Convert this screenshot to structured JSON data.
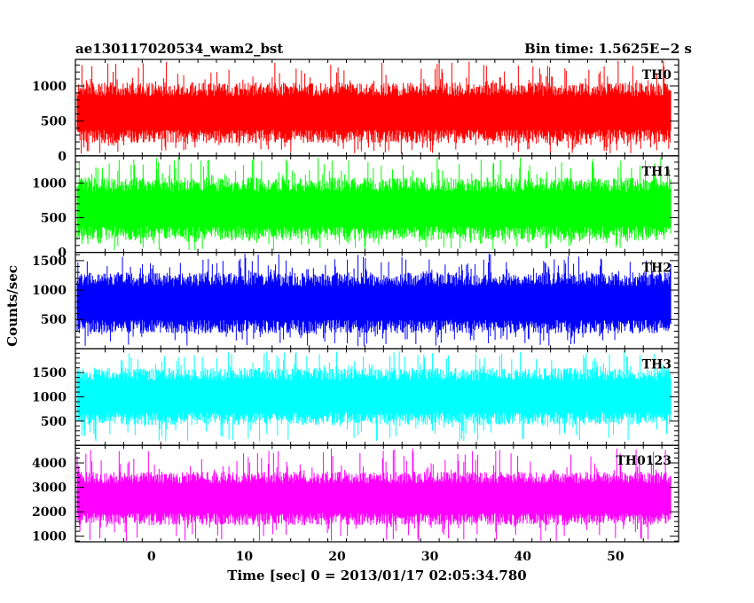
{
  "header": {
    "left_title": "ae130117020534_wam2_bst",
    "right_title": "Bin time: 1.5625E−2 s"
  },
  "axes": {
    "xlabel": "Time [sec] 0 = 2013/01/17 02:05:34.780",
    "ylabel": "Counts/sec"
  },
  "chart_data": {
    "type": "line",
    "title": "ae130117020534_wam2_bst",
    "subtitle": "Bin time: 1.5625E−2 s",
    "xlabel": "Time [sec] 0 = 2013/01/17 02:05:34.780",
    "ylabel": "Counts/sec",
    "xlim": [
      -8.2,
      56.8
    ],
    "data_range": [
      -8,
      56
    ],
    "x_ticks": [
      0,
      10,
      20,
      30,
      40,
      50
    ],
    "bin_time": 0.015625,
    "grid": false,
    "series": [
      {
        "name": "TH0",
        "color": "#ff0000",
        "ylim": [
          0,
          1380
        ],
        "y_ticks": [
          0,
          500,
          1000
        ],
        "typical_low": 180,
        "typical_high": 1050,
        "peak_max": 1360,
        "dip_min": 30
      },
      {
        "name": "TH1",
        "color": "#00ff00",
        "ylim": [
          0,
          1390
        ],
        "y_ticks": [
          0,
          500,
          1000
        ],
        "typical_low": 170,
        "typical_high": 1080,
        "peak_max": 1370,
        "dip_min": 30
      },
      {
        "name": "TH2",
        "color": "#0000ff",
        "ylim": [
          0,
          1640
        ],
        "y_ticks": [
          500,
          1000,
          1500
        ],
        "typical_low": 260,
        "typical_high": 1300,
        "peak_max": 1620,
        "dip_min": 40
      },
      {
        "name": "TH3",
        "color": "#00ffff",
        "ylim": [
          0,
          1990
        ],
        "y_ticks": [
          500,
          1000,
          1500
        ],
        "typical_low": 420,
        "typical_high": 1600,
        "peak_max": 1950,
        "dip_min": 60
      },
      {
        "name": "TH0123",
        "color": "#ff00ff",
        "ylim": [
          770,
          4720
        ],
        "y_ticks": [
          1000,
          2000,
          3000,
          4000
        ],
        "typical_low": 1450,
        "typical_high": 3650,
        "peak_max": 4600,
        "dip_min": 800
      }
    ]
  }
}
